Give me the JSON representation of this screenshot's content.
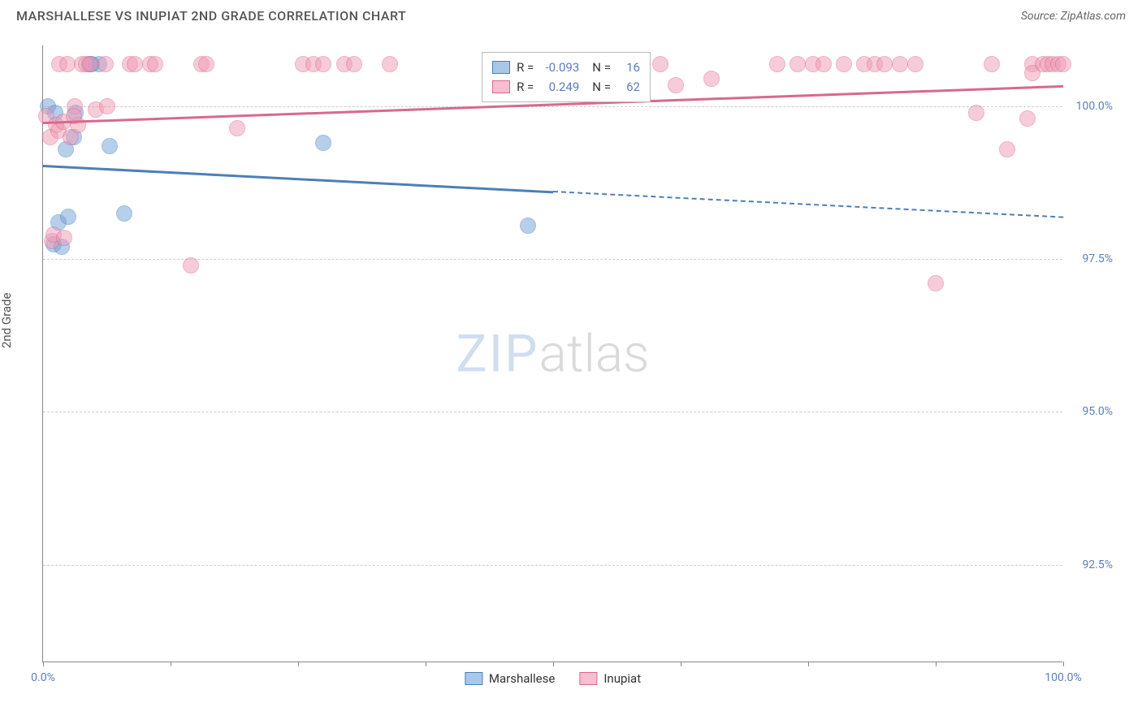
{
  "title": "MARSHALLESE VS INUPIAT 2ND GRADE CORRELATION CHART",
  "source": "Source: ZipAtlas.com",
  "y_axis_label": "2nd Grade",
  "watermark_a": "ZIP",
  "watermark_b": "atlas",
  "chart": {
    "type": "scatter",
    "background_color": "#ffffff",
    "grid_color": "#cccccc",
    "axis_color": "#888888",
    "tick_label_color": "#5b7fb8",
    "xlim": [
      0,
      100
    ],
    "ylim": [
      90.9,
      101.0
    ],
    "y_ticks": [
      92.5,
      95.0,
      97.5,
      100.0
    ],
    "y_tick_labels": [
      "92.5%",
      "95.0%",
      "97.5%",
      "100.0%"
    ],
    "x_ticks": [
      0,
      12.5,
      25,
      37.5,
      50,
      62.5,
      75,
      87.5,
      100
    ],
    "x_tick_labels_shown": {
      "0": "0.0%",
      "100": "100.0%"
    },
    "marker_radius": 10,
    "marker_opacity": 0.5,
    "series": [
      {
        "name": "Marshallese",
        "color": "#6fa1d9",
        "stroke": "#4d7fb8",
        "r_label": "R =",
        "r_value": "-0.093",
        "n_label": "N =",
        "n_value": "16",
        "trend": {
          "x1": 0,
          "y1": 99.05,
          "x2_solid": 50,
          "y2_solid": 98.62,
          "x2": 100,
          "y2": 98.2
        },
        "points": [
          {
            "x": 0.5,
            "y": 100.0
          },
          {
            "x": 1.2,
            "y": 99.9
          },
          {
            "x": 1.0,
            "y": 97.75
          },
          {
            "x": 1.5,
            "y": 98.1
          },
          {
            "x": 1.8,
            "y": 97.7
          },
          {
            "x": 2.2,
            "y": 99.3
          },
          {
            "x": 2.5,
            "y": 98.2
          },
          {
            "x": 3.0,
            "y": 99.5
          },
          {
            "x": 3.2,
            "y": 99.9
          },
          {
            "x": 4.5,
            "y": 100.7
          },
          {
            "x": 5.5,
            "y": 100.7
          },
          {
            "x": 6.5,
            "y": 99.35
          },
          {
            "x": 8.0,
            "y": 98.25
          },
          {
            "x": 27.5,
            "y": 99.4
          },
          {
            "x": 47.5,
            "y": 98.05
          },
          {
            "x": 4.8,
            "y": 100.7
          }
        ]
      },
      {
        "name": "Inupiat",
        "color": "#f19ab5",
        "stroke": "#d9688f",
        "r_label": "R =",
        "r_value": "0.249",
        "n_label": "N =",
        "n_value": "62",
        "trend": {
          "x1": 0,
          "y1": 99.75,
          "x2_solid": 100,
          "y2_solid": 100.35,
          "x2": 100,
          "y2": 100.35
        },
        "points": [
          {
            "x": 0.3,
            "y": 99.85
          },
          {
            "x": 0.7,
            "y": 99.5
          },
          {
            "x": 0.9,
            "y": 97.8
          },
          {
            "x": 1.0,
            "y": 97.9
          },
          {
            "x": 1.3,
            "y": 99.7
          },
          {
            "x": 1.5,
            "y": 99.6
          },
          {
            "x": 1.6,
            "y": 100.7
          },
          {
            "x": 2.0,
            "y": 99.75
          },
          {
            "x": 2.4,
            "y": 100.7
          },
          {
            "x": 2.7,
            "y": 99.5
          },
          {
            "x": 3.1,
            "y": 100.0
          },
          {
            "x": 3.4,
            "y": 99.7
          },
          {
            "x": 3.8,
            "y": 100.7
          },
          {
            "x": 4.2,
            "y": 100.7
          },
          {
            "x": 4.6,
            "y": 100.7
          },
          {
            "x": 5.2,
            "y": 99.95
          },
          {
            "x": 6.1,
            "y": 100.7
          },
          {
            "x": 6.3,
            "y": 100.0
          },
          {
            "x": 8.5,
            "y": 100.7
          },
          {
            "x": 9.0,
            "y": 100.7
          },
          {
            "x": 10.5,
            "y": 100.7
          },
          {
            "x": 11.0,
            "y": 100.7
          },
          {
            "x": 14.5,
            "y": 97.4
          },
          {
            "x": 15.5,
            "y": 100.7
          },
          {
            "x": 16.0,
            "y": 100.7
          },
          {
            "x": 19.0,
            "y": 99.65
          },
          {
            "x": 25.5,
            "y": 100.7
          },
          {
            "x": 26.5,
            "y": 100.7
          },
          {
            "x": 27.5,
            "y": 100.7
          },
          {
            "x": 29.5,
            "y": 100.7
          },
          {
            "x": 30.5,
            "y": 100.7
          },
          {
            "x": 34.0,
            "y": 100.7
          },
          {
            "x": 48.0,
            "y": 100.7
          },
          {
            "x": 49.5,
            "y": 100.7
          },
          {
            "x": 56.5,
            "y": 100.7
          },
          {
            "x": 60.5,
            "y": 100.7
          },
          {
            "x": 62.0,
            "y": 100.35
          },
          {
            "x": 65.5,
            "y": 100.45
          },
          {
            "x": 72.0,
            "y": 100.7
          },
          {
            "x": 74.0,
            "y": 100.7
          },
          {
            "x": 75.5,
            "y": 100.7
          },
          {
            "x": 76.5,
            "y": 100.7
          },
          {
            "x": 78.5,
            "y": 100.7
          },
          {
            "x": 80.5,
            "y": 100.7
          },
          {
            "x": 81.5,
            "y": 100.7
          },
          {
            "x": 82.5,
            "y": 100.7
          },
          {
            "x": 84.0,
            "y": 100.7
          },
          {
            "x": 85.5,
            "y": 100.7
          },
          {
            "x": 87.5,
            "y": 97.1
          },
          {
            "x": 91.5,
            "y": 99.9
          },
          {
            "x": 93.0,
            "y": 100.7
          },
          {
            "x": 94.5,
            "y": 99.3
          },
          {
            "x": 96.5,
            "y": 99.8
          },
          {
            "x": 97.0,
            "y": 100.7
          },
          {
            "x": 97.0,
            "y": 100.55
          },
          {
            "x": 98.0,
            "y": 100.7
          },
          {
            "x": 98.5,
            "y": 100.7
          },
          {
            "x": 99.0,
            "y": 100.7
          },
          {
            "x": 99.5,
            "y": 100.7
          },
          {
            "x": 100.0,
            "y": 100.7
          },
          {
            "x": 2.1,
            "y": 97.85
          },
          {
            "x": 3.0,
            "y": 99.85
          }
        ]
      }
    ]
  },
  "bottom_legend": [
    {
      "label": "Marshallese",
      "fill": "#a9c7e8",
      "stroke": "#4d7fb8"
    },
    {
      "label": "Inupiat",
      "fill": "#f6bed0",
      "stroke": "#d9688f"
    }
  ],
  "stats_legend_swatches": [
    {
      "fill": "#a9c7e8",
      "stroke": "#4d7fb8"
    },
    {
      "fill": "#f6bed0",
      "stroke": "#d9688f"
    }
  ]
}
